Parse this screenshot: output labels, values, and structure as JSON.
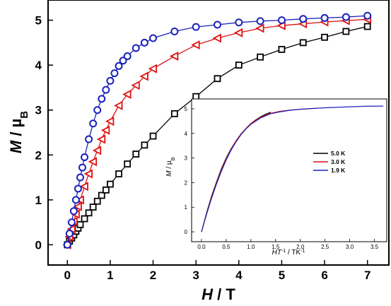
{
  "chart_data": [
    {
      "type": "scatter",
      "xlabel_parts": [
        "H",
        " / T"
      ],
      "ylabel_parts": [
        "M",
        " / µ",
        "B"
      ],
      "xlim": [
        -0.45,
        7.5
      ],
      "ylim": [
        -0.45,
        5.45
      ],
      "x_ticks": [
        "0",
        "1",
        "2",
        "3",
        "4",
        "5",
        "6",
        "7"
      ],
      "y_ticks": [
        "0",
        "1",
        "2",
        "3",
        "4",
        "5"
      ],
      "series": [
        {
          "marker": "square",
          "color": "#000000",
          "x": [
            0,
            0.05,
            0.1,
            0.15,
            0.2,
            0.25,
            0.3,
            0.4,
            0.5,
            0.6,
            0.7,
            0.8,
            0.9,
            1.0,
            1.2,
            1.4,
            1.6,
            1.8,
            2.0,
            2.5,
            3.0,
            3.5,
            4.0,
            4.5,
            5.0,
            5.5,
            6.0,
            6.5,
            7.0
          ],
          "y": [
            0,
            0.08,
            0.15,
            0.22,
            0.3,
            0.37,
            0.45,
            0.58,
            0.71,
            0.84,
            0.97,
            1.1,
            1.22,
            1.35,
            1.58,
            1.8,
            2.02,
            2.22,
            2.42,
            2.92,
            3.3,
            3.7,
            4.0,
            4.18,
            4.35,
            4.5,
            4.62,
            4.75,
            4.86
          ]
        },
        {
          "marker": "triangle-left",
          "color": "#dd1111",
          "x": [
            0,
            0.05,
            0.1,
            0.15,
            0.2,
            0.25,
            0.3,
            0.4,
            0.5,
            0.6,
            0.7,
            0.8,
            0.9,
            1.0,
            1.2,
            1.4,
            1.6,
            1.8,
            2.0,
            2.5,
            3.0,
            3.5,
            4.0,
            4.5,
            5.0,
            5.5,
            6.0,
            6.5,
            7.0
          ],
          "y": [
            0,
            0.18,
            0.35,
            0.52,
            0.68,
            0.85,
            1.0,
            1.3,
            1.58,
            1.85,
            2.1,
            2.35,
            2.55,
            2.75,
            3.1,
            3.35,
            3.55,
            3.75,
            3.92,
            4.2,
            4.45,
            4.6,
            4.72,
            4.82,
            4.88,
            4.92,
            4.96,
            4.99,
            5.02
          ]
        },
        {
          "marker": "circle",
          "color": "#1a22bb",
          "x": [
            0,
            0.05,
            0.1,
            0.15,
            0.2,
            0.25,
            0.3,
            0.35,
            0.4,
            0.5,
            0.6,
            0.7,
            0.8,
            0.9,
            1.0,
            1.1,
            1.2,
            1.3,
            1.4,
            1.6,
            1.8,
            2.0,
            2.5,
            3.0,
            3.5,
            4.0,
            4.5,
            5.0,
            5.5,
            6.0,
            6.5,
            7.0
          ],
          "y": [
            0,
            0.25,
            0.5,
            0.75,
            1.0,
            1.25,
            1.5,
            1.72,
            1.95,
            2.35,
            2.7,
            3.0,
            3.25,
            3.45,
            3.65,
            3.82,
            3.98,
            4.1,
            4.2,
            4.38,
            4.5,
            4.6,
            4.75,
            4.85,
            4.9,
            4.95,
            4.98,
            5.0,
            5.03,
            5.05,
            5.07,
            5.1
          ]
        }
      ]
    },
    {
      "type": "line",
      "xlabel_parts": [
        "HT",
        "-1",
        " / TK",
        "-1"
      ],
      "ylabel_parts": [
        "M",
        " / µ",
        "B"
      ],
      "xlim": [
        -0.2,
        3.75
      ],
      "ylim": [
        -0.4,
        5.4
      ],
      "x_ticks": [
        "0.0",
        "0.5",
        "1.0",
        "1.5",
        "2.0",
        "2.5",
        "3.0",
        "3.5"
      ],
      "y_ticks": [
        "0",
        "1",
        "2",
        "3",
        "4",
        "5"
      ],
      "legend_position": "right",
      "series": [
        {
          "name": "5.0 K",
          "color": "#000000",
          "x": [
            0,
            0.05,
            0.1,
            0.2,
            0.3,
            0.4,
            0.5,
            0.6,
            0.7,
            0.8,
            0.9,
            1.0,
            1.1,
            1.2,
            1.3,
            1.4
          ],
          "y": [
            0,
            0.38,
            0.75,
            1.42,
            2.0,
            2.55,
            3.0,
            3.38,
            3.7,
            3.98,
            4.2,
            4.4,
            4.55,
            4.68,
            4.78,
            4.86
          ]
        },
        {
          "name": "3.0 K",
          "color": "#dd1111",
          "x": [
            0,
            0.05,
            0.1,
            0.2,
            0.3,
            0.4,
            0.5,
            0.6,
            0.7,
            0.8,
            0.9,
            1.0,
            1.2,
            1.4,
            1.6,
            1.8,
            2.0,
            2.2,
            2.33
          ],
          "y": [
            0,
            0.37,
            0.72,
            1.38,
            1.96,
            2.5,
            2.96,
            3.36,
            3.7,
            3.98,
            4.2,
            4.4,
            4.66,
            4.82,
            4.9,
            4.95,
            4.98,
            5.01,
            5.02
          ]
        },
        {
          "name": "1.9 K",
          "color": "#1a22bb",
          "x": [
            0,
            0.05,
            0.1,
            0.2,
            0.3,
            0.4,
            0.5,
            0.6,
            0.7,
            0.8,
            0.9,
            1.0,
            1.2,
            1.4,
            1.6,
            1.8,
            2.0,
            2.5,
            3.0,
            3.3,
            3.68
          ],
          "y": [
            0,
            0.36,
            0.7,
            1.34,
            1.92,
            2.45,
            2.92,
            3.32,
            3.66,
            3.95,
            4.18,
            4.37,
            4.63,
            4.8,
            4.88,
            4.94,
            4.98,
            5.04,
            5.08,
            5.1,
            5.11
          ]
        }
      ]
    }
  ]
}
